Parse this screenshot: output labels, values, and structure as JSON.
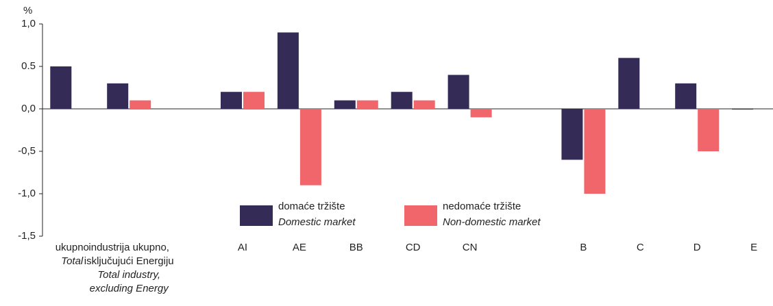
{
  "chart_data": {
    "type": "bar",
    "y_unit": "%",
    "categories": [
      "ukupno",
      "industrija ukupno,\nisključujući Energiju",
      null,
      "AI",
      "AE",
      "BB",
      "CD",
      "CN",
      null,
      "B",
      "C",
      "D",
      "E"
    ],
    "category_subtitles": [
      "Total",
      "Total industry,\nexcluding Energy",
      null,
      null,
      null,
      null,
      null,
      null,
      null,
      null,
      null,
      null,
      null
    ],
    "series": [
      {
        "name": "domaće tržište",
        "subtitle": "Domestic market",
        "color": "#352b57",
        "values": [
          0.5,
          0.3,
          null,
          0.2,
          0.9,
          0.1,
          0.2,
          0.4,
          null,
          -0.6,
          0.6,
          0.3,
          0.0
        ]
      },
      {
        "name": "nedomaće tržište",
        "subtitle": "Non-domestic market",
        "color": "#f0666a",
        "values": [
          0.0,
          0.1,
          null,
          0.2,
          -0.9,
          0.1,
          0.1,
          -0.1,
          null,
          -1.0,
          0.0,
          -0.5,
          0.0
        ]
      }
    ],
    "ylim": [
      -1.5,
      1.0
    ],
    "yticks": [
      {
        "value": 1.0,
        "label": "1,0"
      },
      0.5,
      {
        "value": 0.0,
        "label": "0,0"
      },
      {
        "value": -0.5,
        "label": "-0,5"
      },
      {
        "value": -1.0,
        "label": "-1,0"
      },
      {
        "value": -1.5,
        "label": "-1,5"
      }
    ],
    "grid": false
  }
}
